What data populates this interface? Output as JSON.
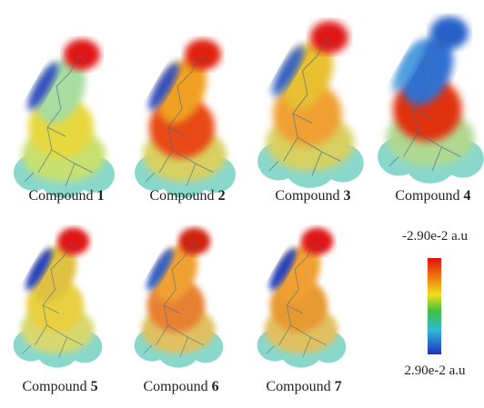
{
  "compounds": [
    {
      "label": "Compound",
      "number": "1"
    },
    {
      "label": "Compound",
      "number": "2"
    },
    {
      "label": "Compound",
      "number": "3"
    },
    {
      "label": "Compound",
      "number": "4"
    },
    {
      "label": "Compound",
      "number": "5"
    },
    {
      "label": "Compound",
      "number": "6"
    },
    {
      "label": "Compound",
      "number": "7"
    }
  ],
  "colorbar": {
    "top_label": "-2.90e-2 a.u",
    "bottom_label": "2.90e-2 a.u"
  }
}
